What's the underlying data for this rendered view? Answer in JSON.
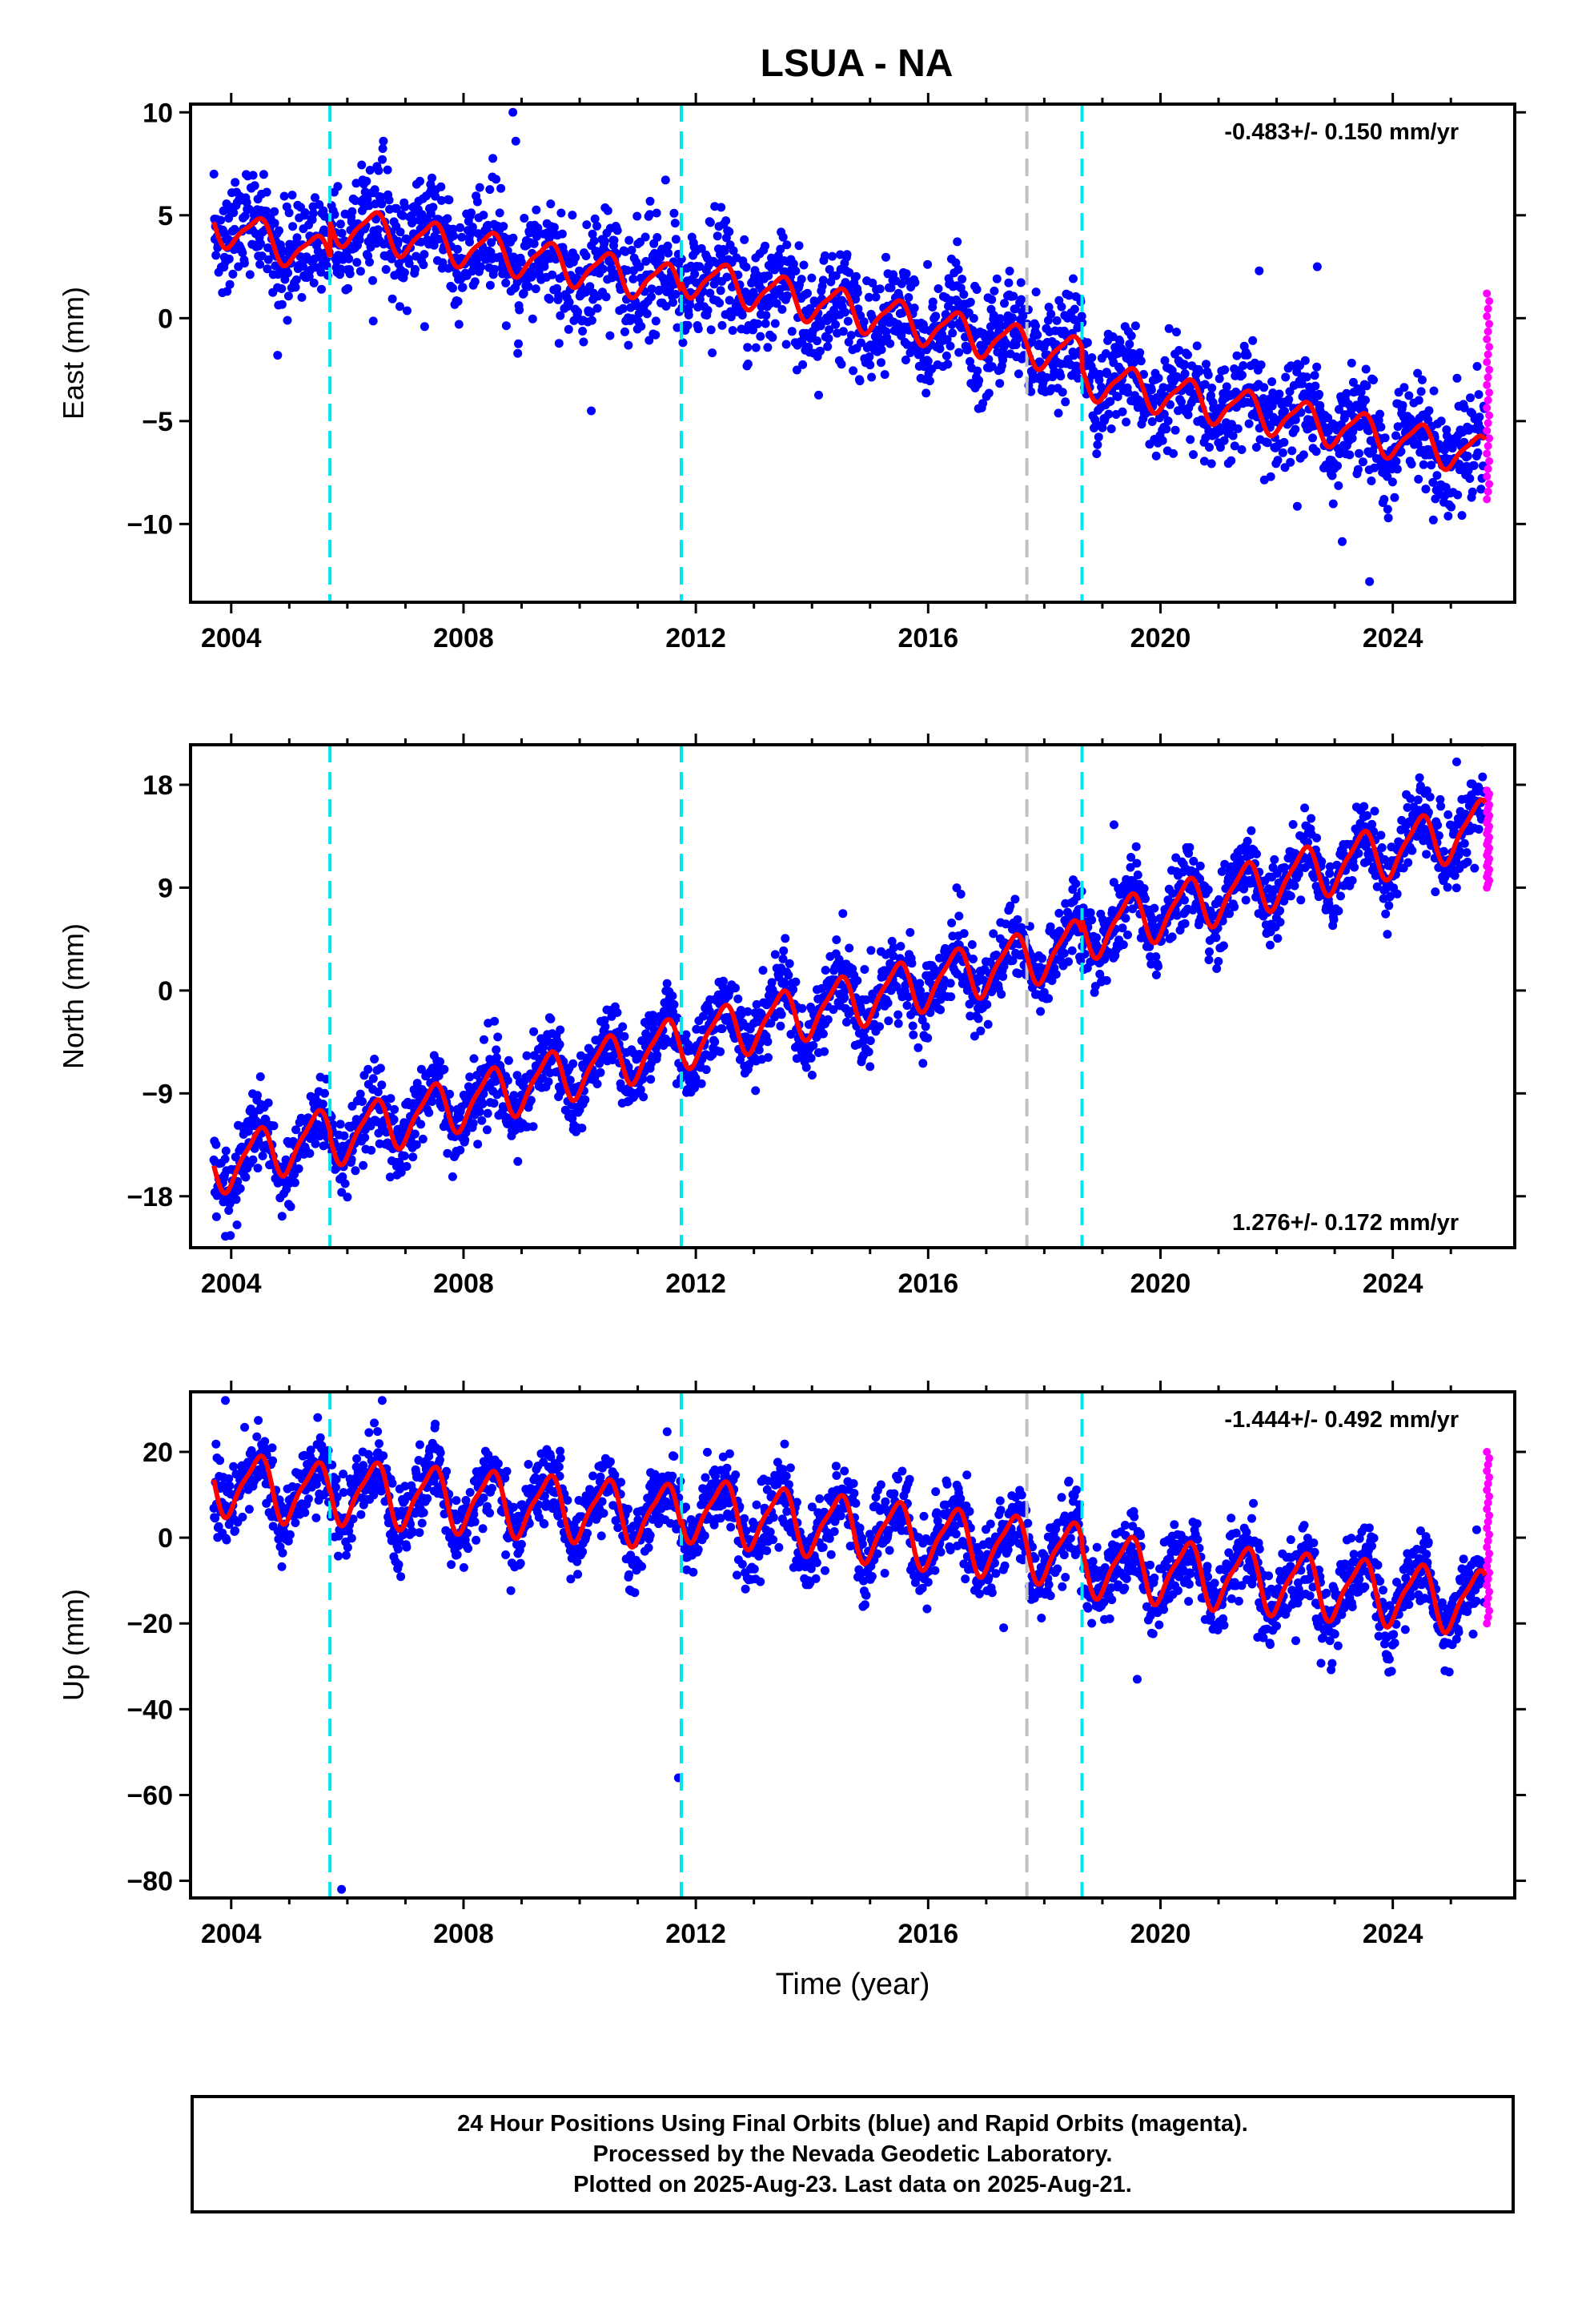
{
  "title": "LSUA - NA",
  "colors": {
    "final_orbits": "#0000ff",
    "rapid_orbits": "#ff00ff",
    "model_fit": "#ff0000",
    "equipment_change_lines": "#00e5ee",
    "other_event_lines": "#c0c0c0"
  },
  "footer": {
    "line1": "24 Hour Positions Using Final Orbits (blue) and Rapid Orbits (magenta).",
    "line2": "Processed by the Nevada Geodetic Laboratory.",
    "line3": "Plotted on 2025-Aug-23. Last data on 2025-Aug-21."
  },
  "chart_data": [
    {
      "type": "scatter",
      "component": "East",
      "ylabel": "East (mm)",
      "xlabel": "",
      "xlim": [
        2003.3,
        2026.1
      ],
      "ylim": [
        -13.8,
        10.4
      ],
      "x_ticks": [
        "2004",
        "2008",
        "2012",
        "2016",
        "2020",
        "2024"
      ],
      "y_ticks": [
        "10",
        "5",
        "0",
        "−5",
        "−10"
      ],
      "y_tick_values": [
        10,
        5,
        0,
        -5,
        -10
      ],
      "rate_label": "-0.483+/- 0.150 mm/yr",
      "rate_label_position": "top-right",
      "cyan_dashed_lines": [
        2005.7,
        2011.75,
        2018.65
      ],
      "gray_dashed_lines": [
        2017.7
      ],
      "trend": {
        "segments": [
          {
            "x0": 2003.7,
            "x1": 2005.7,
            "y0": 4.6,
            "y1": 2.9
          },
          {
            "x0": 2005.7,
            "x1": 2011.75,
            "y0": 4.6,
            "y1": 1.6
          },
          {
            "x0": 2011.75,
            "x1": 2018.65,
            "y0": 2.1,
            "y1": -1.9
          },
          {
            "x0": 2018.65,
            "x1": 2025.6,
            "y0": -2.9,
            "y1": -6.7
          }
        ],
        "annual_amplitude": 0.9,
        "scatter_sd": 1.3
      },
      "rapid_points": {
        "x": [
          2025.62,
          2025.64,
          2025.66
        ],
        "y_range": [
          -8.8,
          1.2
        ]
      },
      "outliers": [
        {
          "x": 2008.85,
          "y": 10.0
        },
        {
          "x": 2008.9,
          "y": 8.6
        },
        {
          "x": 2010.2,
          "y": -4.5
        },
        {
          "x": 2004.8,
          "y": -1.8
        },
        {
          "x": 2023.6,
          "y": -12.8
        },
        {
          "x": 2022.7,
          "y": 2.5
        },
        {
          "x": 2021.7,
          "y": 2.3
        }
      ]
    },
    {
      "type": "scatter",
      "component": "North",
      "ylabel": "North (mm)",
      "xlabel": "",
      "xlim": [
        2003.3,
        2026.1
      ],
      "ylim": [
        -22.5,
        21.5
      ],
      "x_ticks": [
        "2004",
        "2008",
        "2012",
        "2016",
        "2020",
        "2024"
      ],
      "y_ticks": [
        "18",
        "9",
        "0",
        "−9",
        "−18"
      ],
      "y_tick_values": [
        18,
        9,
        0,
        -9,
        -18
      ],
      "rate_label": "1.276+/- 0.172 mm/yr",
      "rate_label_position": "bottom-right",
      "cyan_dashed_lines": [
        2005.7,
        2011.75,
        2018.65
      ],
      "gray_dashed_lines": [
        2017.7
      ],
      "trend": {
        "segments": [
          {
            "x0": 2003.7,
            "x1": 2005.7,
            "y0": -15.5,
            "y1": -12.5
          },
          {
            "x0": 2005.7,
            "x1": 2011.75,
            "y0": -13.0,
            "y1": -4.5
          },
          {
            "x0": 2011.75,
            "x1": 2018.65,
            "y0": -4.5,
            "y1": 4.0
          },
          {
            "x0": 2018.65,
            "x1": 2025.6,
            "y0": 5.0,
            "y1": 14.5
          }
        ],
        "annual_amplitude": 2.2,
        "scatter_sd": 1.7
      },
      "rapid_points": {
        "x": [
          2025.62,
          2025.64,
          2025.66
        ],
        "y_range": [
          9.0,
          17.5
        ]
      },
      "outliers": [
        {
          "x": 2003.9,
          "y": -21.5
        },
        {
          "x": 2004.1,
          "y": -20.5
        },
        {
          "x": 2025.1,
          "y": 20.0
        },
        {
          "x": 2019.2,
          "y": 14.5
        }
      ]
    },
    {
      "type": "scatter",
      "component": "Up",
      "ylabel": "Up (mm)",
      "xlabel": "Time (year)",
      "xlim": [
        2003.3,
        2026.1
      ],
      "ylim": [
        -84,
        34
      ],
      "x_ticks": [
        "2004",
        "2008",
        "2012",
        "2016",
        "2020",
        "2024"
      ],
      "y_ticks": [
        "20",
        "0",
        "−20",
        "−40",
        "−60",
        "−80"
      ],
      "y_tick_values": [
        20,
        0,
        -20,
        -40,
        -60,
        -80
      ],
      "rate_label": "-1.444+/- 0.492 mm/yr",
      "rate_label_position": "top-right",
      "cyan_dashed_lines": [
        2005.7,
        2011.75,
        2018.65
      ],
      "gray_dashed_lines": [
        2017.7
      ],
      "trend": {
        "segments": [
          {
            "x0": 2003.7,
            "x1": 2005.7,
            "y0": 13.0,
            "y1": 10.0
          },
          {
            "x0": 2005.7,
            "x1": 2011.75,
            "y0": 11.0,
            "y1": 5.0
          },
          {
            "x0": 2011.75,
            "x1": 2018.65,
            "y0": 7.0,
            "y1": -4.0
          },
          {
            "x0": 2018.65,
            "x1": 2025.6,
            "y0": -6.0,
            "y1": -15.0
          }
        ],
        "annual_amplitude": 7.0,
        "scatter_sd": 4.5
      },
      "rapid_points": {
        "x": [
          2025.62,
          2025.64,
          2025.66
        ],
        "y_range": [
          -20.0,
          20.0
        ]
      },
      "outliers": [
        {
          "x": 2005.9,
          "y": -82.0
        },
        {
          "x": 2011.7,
          "y": -56.0
        },
        {
          "x": 2003.9,
          "y": 32.0
        },
        {
          "x": 2006.6,
          "y": 32.0
        },
        {
          "x": 2017.3,
          "y": -21.0
        },
        {
          "x": 2019.6,
          "y": -33.0
        },
        {
          "x": 2021.6,
          "y": 8.0
        }
      ]
    }
  ]
}
